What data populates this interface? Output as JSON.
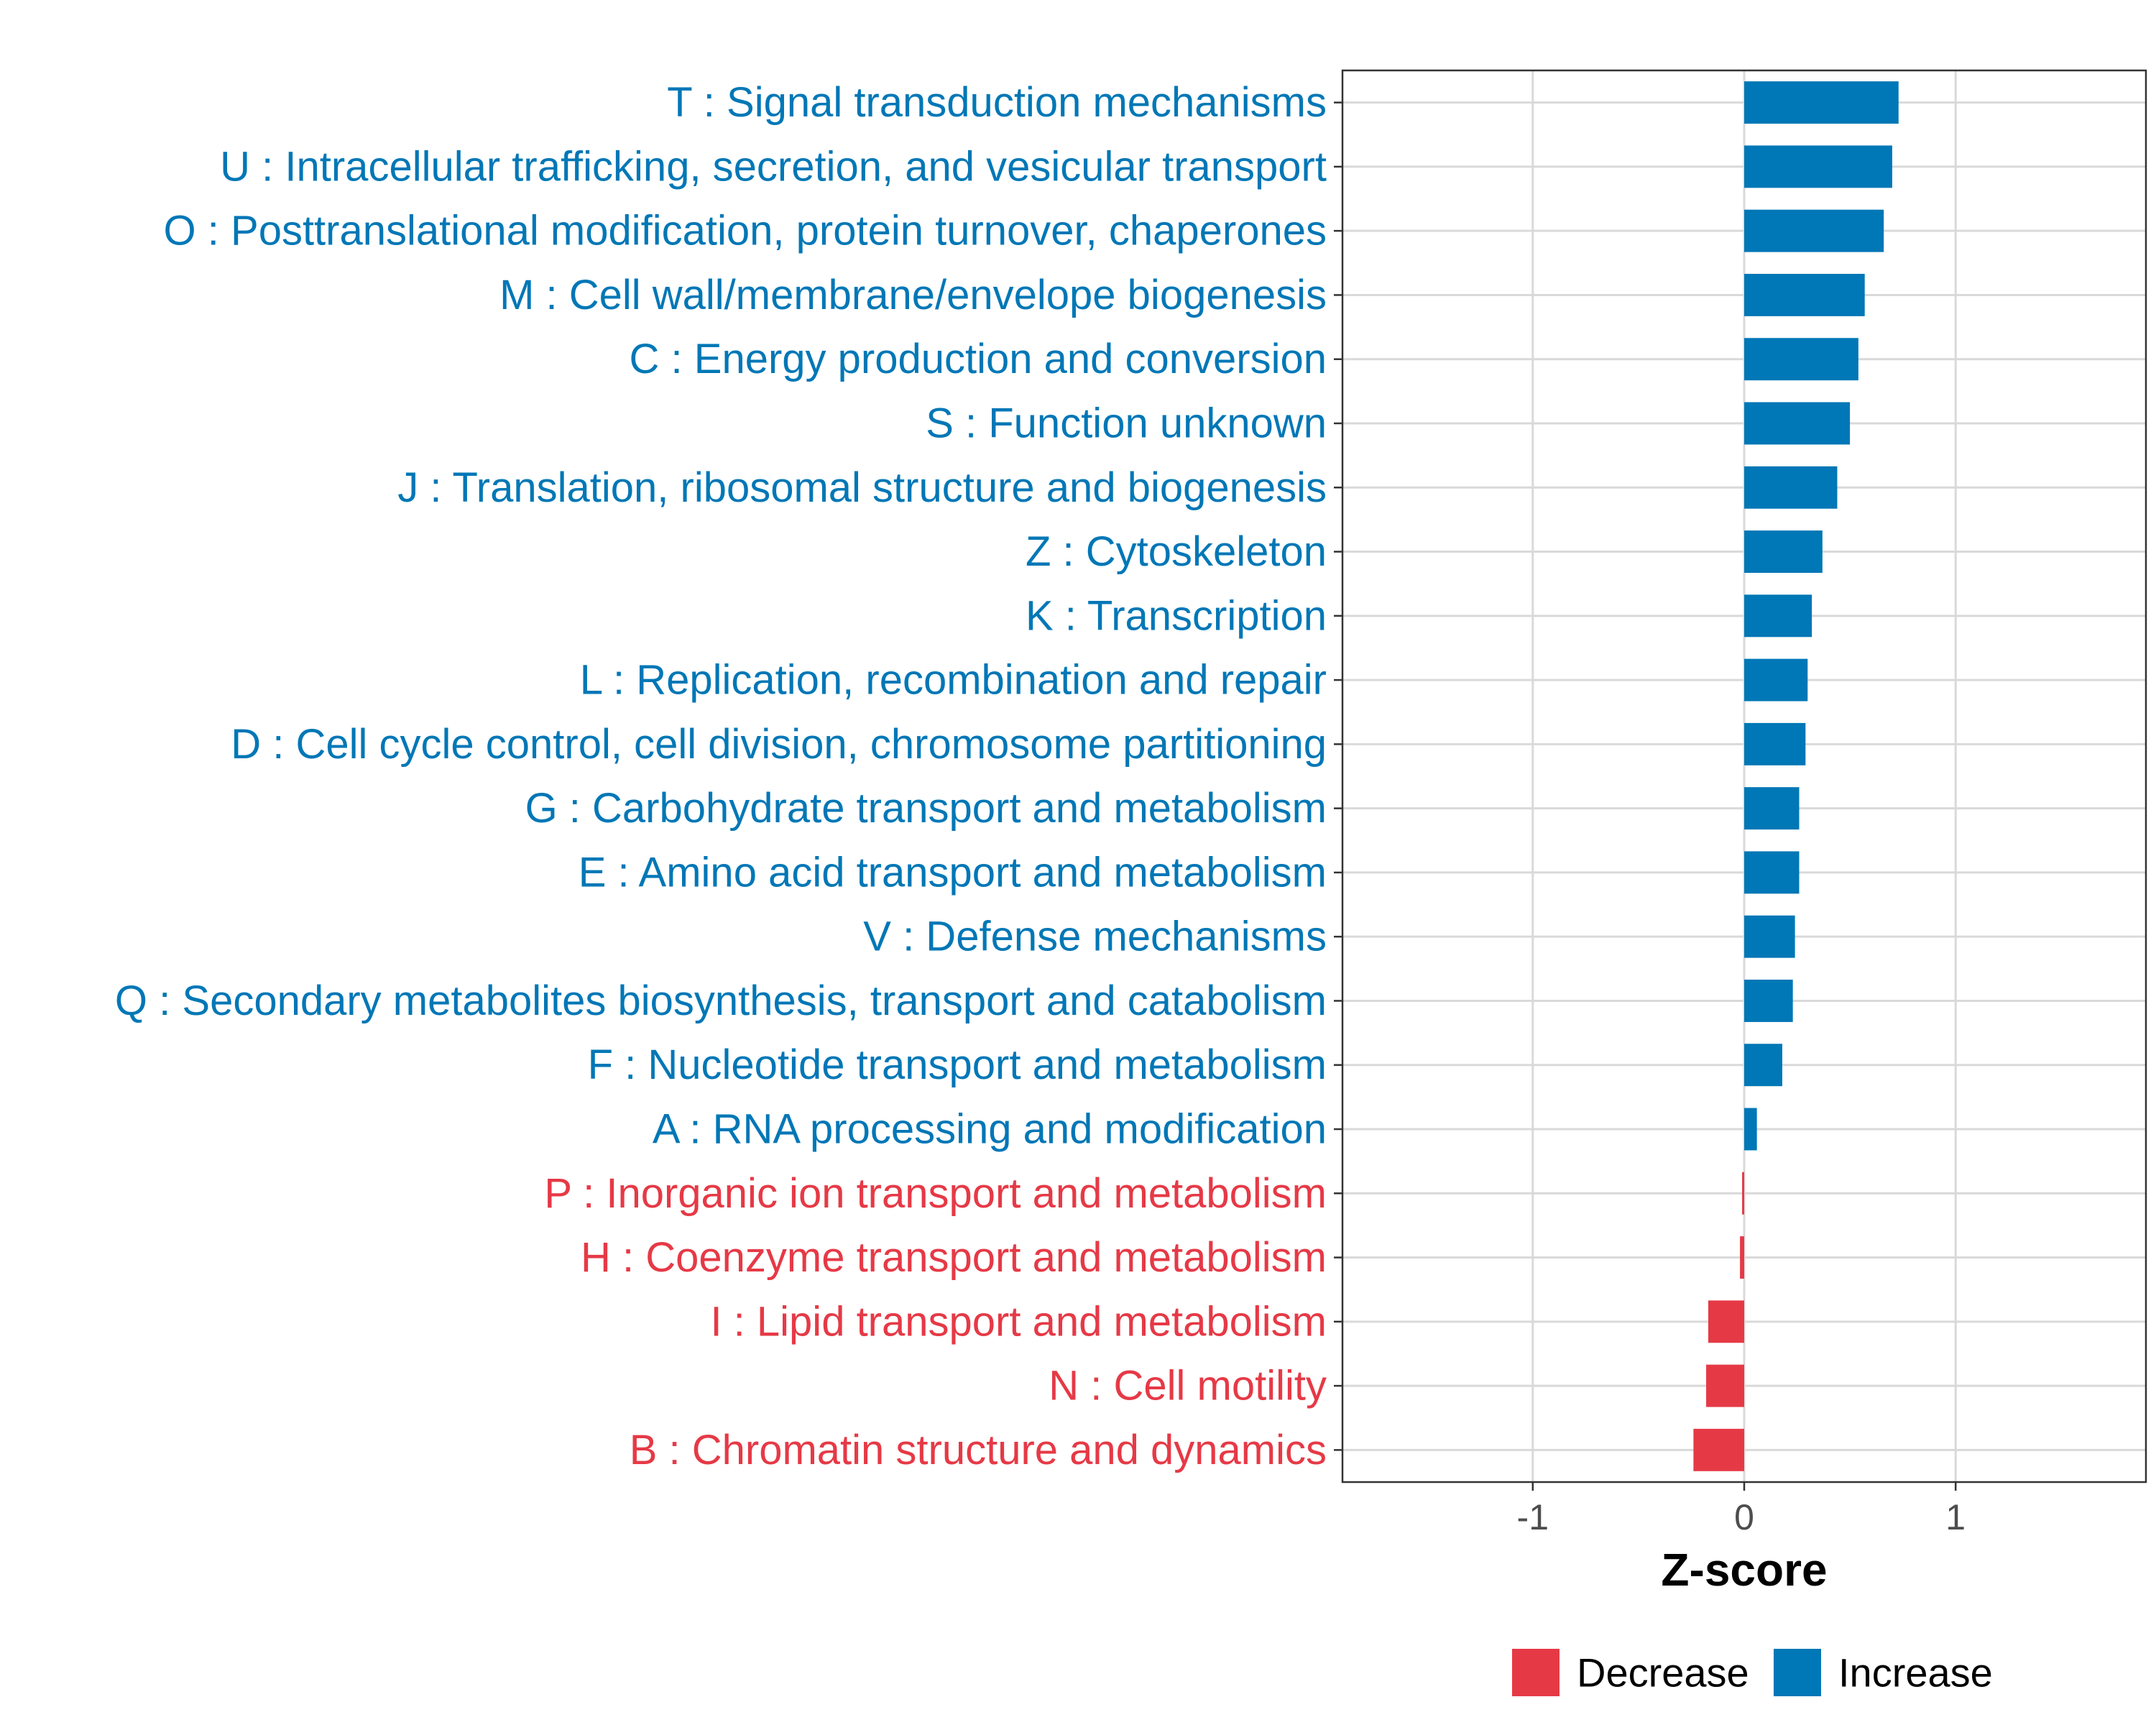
{
  "chart_data": {
    "type": "bar",
    "orientation": "horizontal",
    "title": "",
    "xlabel": "Z-score",
    "ylabel": "",
    "xlim": [
      -1.9,
      1.9
    ],
    "xticks": [
      -1,
      0,
      1
    ],
    "xtick_labels": [
      "-1",
      "0",
      "1"
    ],
    "grid": true,
    "legend_position": "bottom",
    "colors": {
      "Decrease": "#e63946",
      "Increase": "#0077b6"
    },
    "legend": [
      {
        "label": "Decrease",
        "color": "#e63946"
      },
      {
        "label": "Increase",
        "color": "#0077b6"
      }
    ],
    "categories": [
      "T : Signal transduction mechanisms",
      "U : Intracellular trafficking, secretion, and vesicular transport",
      "O : Posttranslational modification, protein turnover, chaperones",
      "M : Cell wall/membrane/envelope biogenesis",
      "C : Energy production and conversion",
      "S : Function unknown",
      "J : Translation, ribosomal structure and biogenesis",
      "Z : Cytoskeleton",
      "K : Transcription",
      "L : Replication, recombination and repair",
      "D : Cell cycle control, cell division, chromosome partitioning",
      "G : Carbohydrate transport and metabolism",
      "E : Amino acid transport and metabolism",
      "V : Defense mechanisms",
      "Q : Secondary metabolites biosynthesis, transport and catabolism",
      "F : Nucleotide transport and metabolism",
      "A : RNA processing and modification",
      "P : Inorganic ion transport and metabolism",
      "H : Coenzyme transport and metabolism",
      "I : Lipid transport and metabolism",
      "N : Cell motility",
      "B : Chromatin structure and dynamics"
    ],
    "values": [
      0.73,
      0.7,
      0.66,
      0.57,
      0.54,
      0.5,
      0.44,
      0.37,
      0.32,
      0.3,
      0.29,
      0.26,
      0.26,
      0.24,
      0.23,
      0.18,
      0.06,
      -0.01,
      -0.02,
      -0.17,
      -0.18,
      -0.24
    ],
    "groups": [
      "Increase",
      "Increase",
      "Increase",
      "Increase",
      "Increase",
      "Increase",
      "Increase",
      "Increase",
      "Increase",
      "Increase",
      "Increase",
      "Increase",
      "Increase",
      "Increase",
      "Increase",
      "Increase",
      "Increase",
      "Decrease",
      "Decrease",
      "Decrease",
      "Decrease",
      "Decrease"
    ]
  }
}
